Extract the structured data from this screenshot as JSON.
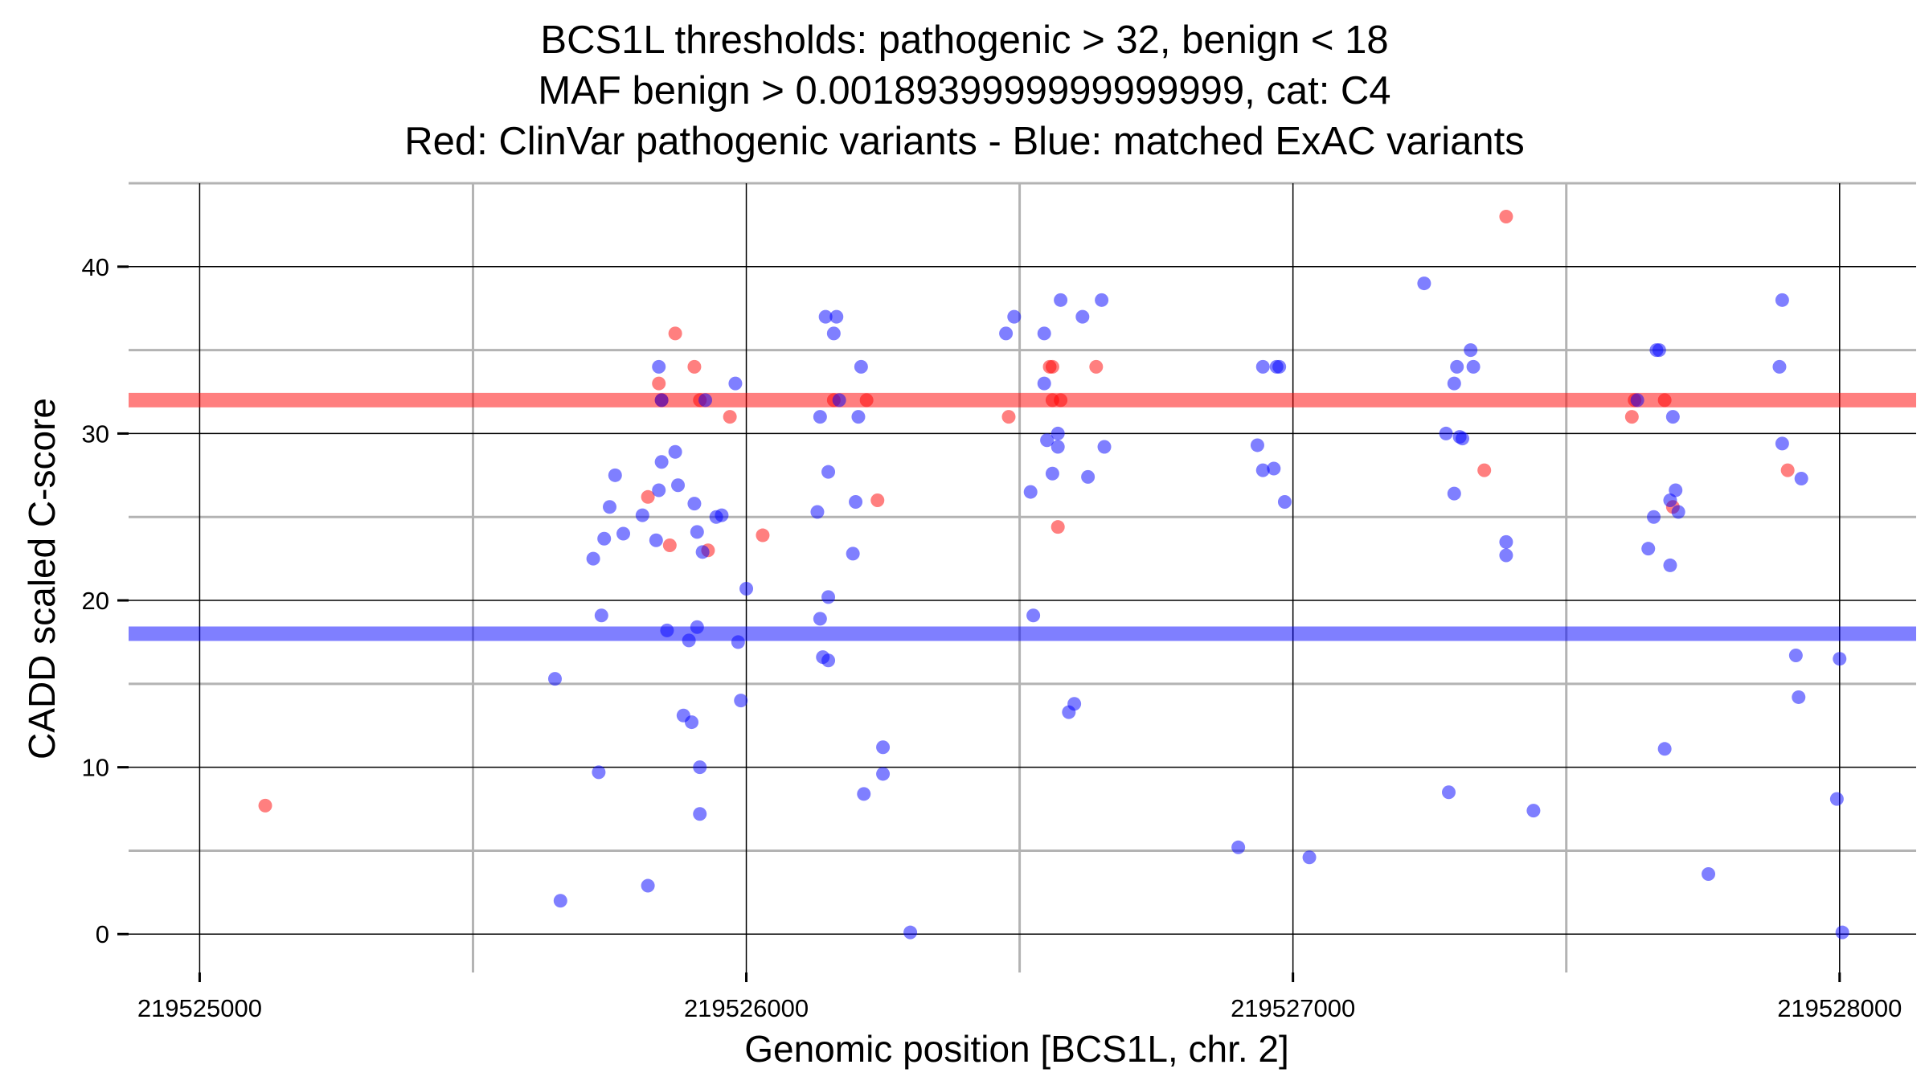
{
  "chart_data": {
    "type": "scatter",
    "title_lines": [
      "BCS1L thresholds: pathogenic > 32, benign < 18",
      "MAF benign > 0.0018939999999999999, cat: C4",
      "Red: ClinVar pathogenic variants - Blue: matched ExAC variants"
    ],
    "xlabel": "Genomic position [BCS1L, chr. 2]",
    "ylabel": "CADD scaled C-score",
    "xlim": [
      219524870,
      219528140
    ],
    "ylim": [
      -2.3,
      45
    ],
    "x_ticks": [
      {
        "value": 219525000,
        "label": "219525000"
      },
      {
        "value": 219526000,
        "label": "219526000"
      },
      {
        "value": 219527000,
        "label": "219527000"
      },
      {
        "value": 219528000,
        "label": "219528000"
      }
    ],
    "x_minor_gridlines": [
      219525500,
      219526500,
      219527500
    ],
    "y_ticks": [
      {
        "value": 0,
        "label": "0"
      },
      {
        "value": 10,
        "label": "10"
      },
      {
        "value": 20,
        "label": "20"
      },
      {
        "value": 30,
        "label": "30"
      },
      {
        "value": 40,
        "label": "40"
      }
    ],
    "y_minor_gridlines": [
      5,
      15,
      25,
      35,
      45
    ],
    "thresholds": [
      {
        "name": "pathogenic",
        "value": 32,
        "color": "#ff0000"
      },
      {
        "name": "benign",
        "value": 18,
        "color": "#0000ff"
      }
    ],
    "series": [
      {
        "name": "ClinVar pathogenic variants",
        "color": "#ff0000",
        "points": [
          [
            219525120,
            7.7
          ],
          [
            219525820,
            26.2
          ],
          [
            219525840,
            33.0
          ],
          [
            219525845,
            32.0
          ],
          [
            219525860,
            23.3
          ],
          [
            219525870,
            36.0
          ],
          [
            219525905,
            34.0
          ],
          [
            219525915,
            32.0
          ],
          [
            219525930,
            23.0
          ],
          [
            219525970,
            31.0
          ],
          [
            219526030,
            23.9
          ],
          [
            219526160,
            32.0
          ],
          [
            219526220,
            32.0
          ],
          [
            219526240,
            26.0
          ],
          [
            219526480,
            31.0
          ],
          [
            219526555,
            34.0
          ],
          [
            219526560,
            34.0
          ],
          [
            219526560,
            32.0
          ],
          [
            219526570,
            24.4
          ],
          [
            219526575,
            32.0
          ],
          [
            219526640,
            34.0
          ],
          [
            219527350,
            27.8
          ],
          [
            219527390,
            43.0
          ],
          [
            219527620,
            31.0
          ],
          [
            219527625,
            32.0
          ],
          [
            219527680,
            32.0
          ],
          [
            219527695,
            25.6
          ],
          [
            219527905,
            27.8
          ]
        ]
      },
      {
        "name": "matched ExAC variants",
        "color": "#0000ff",
        "points": [
          [
            219525650,
            15.3
          ],
          [
            219525660,
            2.0
          ],
          [
            219525720,
            22.5
          ],
          [
            219525730,
            9.7
          ],
          [
            219525735,
            19.1
          ],
          [
            219525740,
            23.7
          ],
          [
            219525750,
            25.6
          ],
          [
            219525760,
            27.5
          ],
          [
            219525775,
            24.0
          ],
          [
            219525810,
            25.1
          ],
          [
            219525820,
            2.9
          ],
          [
            219525835,
            23.6
          ],
          [
            219525840,
            34.0
          ],
          [
            219525840,
            26.6
          ],
          [
            219525845,
            28.3
          ],
          [
            219525845,
            32.0
          ],
          [
            219525855,
            18.2
          ],
          [
            219525870,
            28.9
          ],
          [
            219525875,
            26.9
          ],
          [
            219525885,
            13.1
          ],
          [
            219525895,
            17.6
          ],
          [
            219525900,
            12.7
          ],
          [
            219525905,
            25.8
          ],
          [
            219525910,
            24.1
          ],
          [
            219525910,
            18.4
          ],
          [
            219525915,
            10.0
          ],
          [
            219525915,
            7.2
          ],
          [
            219525920,
            22.9
          ],
          [
            219525925,
            32.0
          ],
          [
            219525945,
            25.0
          ],
          [
            219525955,
            25.1
          ],
          [
            219525980,
            33.0
          ],
          [
            219525985,
            17.5
          ],
          [
            219525990,
            14.0
          ],
          [
            219526000,
            20.7
          ],
          [
            219526130,
            25.3
          ],
          [
            219526135,
            31.0
          ],
          [
            219526135,
            18.9
          ],
          [
            219526140,
            16.6
          ],
          [
            219526145,
            37.0
          ],
          [
            219526150,
            27.7
          ],
          [
            219526150,
            20.2
          ],
          [
            219526150,
            16.4
          ],
          [
            219526160,
            36.0
          ],
          [
            219526165,
            37.0
          ],
          [
            219526170,
            32.0
          ],
          [
            219526195,
            22.8
          ],
          [
            219526200,
            25.9
          ],
          [
            219526205,
            31.0
          ],
          [
            219526210,
            34.0
          ],
          [
            219526215,
            8.4
          ],
          [
            219526250,
            11.2
          ],
          [
            219526250,
            9.6
          ],
          [
            219526300,
            0.1
          ],
          [
            219526475,
            36.0
          ],
          [
            219526490,
            37.0
          ],
          [
            219526520,
            26.5
          ],
          [
            219526525,
            19.1
          ],
          [
            219526545,
            36.0
          ],
          [
            219526545,
            33.0
          ],
          [
            219526550,
            29.6
          ],
          [
            219526560,
            27.6
          ],
          [
            219526570,
            30.0
          ],
          [
            219526570,
            29.2
          ],
          [
            219526575,
            38.0
          ],
          [
            219526590,
            13.3
          ],
          [
            219526600,
            13.8
          ],
          [
            219526615,
            37.0
          ],
          [
            219526625,
            27.4
          ],
          [
            219526650,
            38.0
          ],
          [
            219526655,
            29.2
          ],
          [
            219526900,
            5.2
          ],
          [
            219526935,
            29.3
          ],
          [
            219526945,
            34.0
          ],
          [
            219526945,
            27.8
          ],
          [
            219526965,
            27.9
          ],
          [
            219526970,
            34.0
          ],
          [
            219526975,
            34.0
          ],
          [
            219526985,
            25.9
          ],
          [
            219527030,
            4.6
          ],
          [
            219527240,
            39.0
          ],
          [
            219527280,
            30.0
          ],
          [
            219527285,
            8.5
          ],
          [
            219527295,
            26.4
          ],
          [
            219527295,
            33.0
          ],
          [
            219527300,
            34.0
          ],
          [
            219527305,
            29.8
          ],
          [
            219527310,
            29.7
          ],
          [
            219527325,
            35.0
          ],
          [
            219527330,
            34.0
          ],
          [
            219527390,
            23.5
          ],
          [
            219527390,
            22.7
          ],
          [
            219527440,
            7.4
          ],
          [
            219527630,
            32.0
          ],
          [
            219527650,
            23.1
          ],
          [
            219527660,
            25.0
          ],
          [
            219527665,
            35.0
          ],
          [
            219527670,
            35.0
          ],
          [
            219527680,
            11.1
          ],
          [
            219527690,
            26.0
          ],
          [
            219527690,
            22.1
          ],
          [
            219527695,
            31.0
          ],
          [
            219527700,
            26.6
          ],
          [
            219527705,
            25.3
          ],
          [
            219527760,
            3.6
          ],
          [
            219527890,
            34.0
          ],
          [
            219527895,
            38.0
          ],
          [
            219527895,
            29.4
          ],
          [
            219527920,
            16.7
          ],
          [
            219527925,
            14.2
          ],
          [
            219527930,
            27.3
          ],
          [
            219527995,
            8.1
          ],
          [
            219528000,
            16.5
          ],
          [
            219528005,
            0.1
          ]
        ]
      }
    ]
  }
}
